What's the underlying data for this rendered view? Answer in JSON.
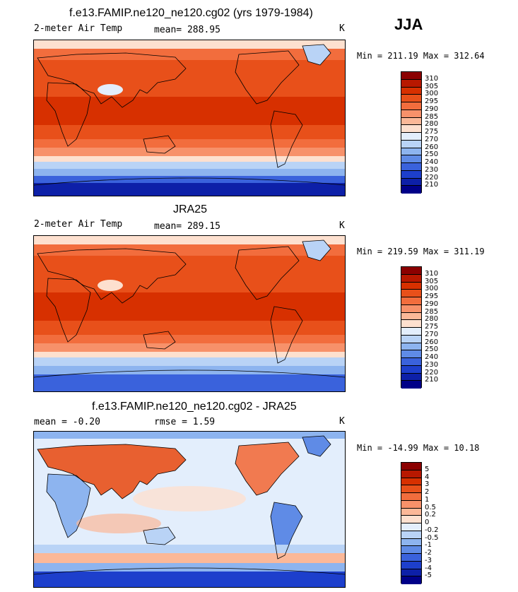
{
  "season": "JJA",
  "panels": [
    {
      "title": "f.e13.FAMIP.ne120_ne120.cg02 (yrs 1979-1984)",
      "left_label": "2-meter Air Temp",
      "mean_label": "mean= 288.95",
      "unit": "K",
      "minmax": "Min = 211.19 Max = 312.64"
    },
    {
      "title": "JRA25",
      "left_label": "2-meter Air Temp",
      "mean_label": "mean= 289.15",
      "unit": "K",
      "minmax": "Min = 219.59 Max = 311.19"
    },
    {
      "title": "f.e13.FAMIP.ne120_ne120.cg02 - JRA25",
      "left_label": "mean =   -0.20",
      "mean_label": "rmse =   1.59",
      "unit": "K",
      "minmax": "Min = -14.99 Max =  10.18"
    }
  ],
  "colorbars": {
    "temp": {
      "labels": [
        "310",
        "305",
        "300",
        "295",
        "290",
        "285",
        "280",
        "275",
        "270",
        "260",
        "250",
        "240",
        "230",
        "220",
        "210"
      ],
      "colors": [
        "#8b0000",
        "#b81800",
        "#d73000",
        "#e8501a",
        "#f26d3d",
        "#f7916a",
        "#fbb898",
        "#fde0cf",
        "#e3eefc",
        "#b9d3f6",
        "#8db4ef",
        "#5f8be6",
        "#3a62dc",
        "#1d3fcc",
        "#0d20a8",
        "#000088"
      ]
    },
    "diff": {
      "labels": [
        "5",
        "4",
        "3",
        "2",
        "1",
        "0.5",
        "0.2",
        "0",
        "-0.2",
        "-0.5",
        "-1",
        "-2",
        "-3",
        "-4",
        "-5"
      ],
      "colors": [
        "#8b0000",
        "#b81800",
        "#d73000",
        "#e8501a",
        "#f26d3d",
        "#f7916a",
        "#fbb898",
        "#fde0cf",
        "#e3eefc",
        "#b9d3f6",
        "#8db4ef",
        "#5f8be6",
        "#3a62dc",
        "#1d3fcc",
        "#0d20a8",
        "#000088"
      ]
    }
  }
}
